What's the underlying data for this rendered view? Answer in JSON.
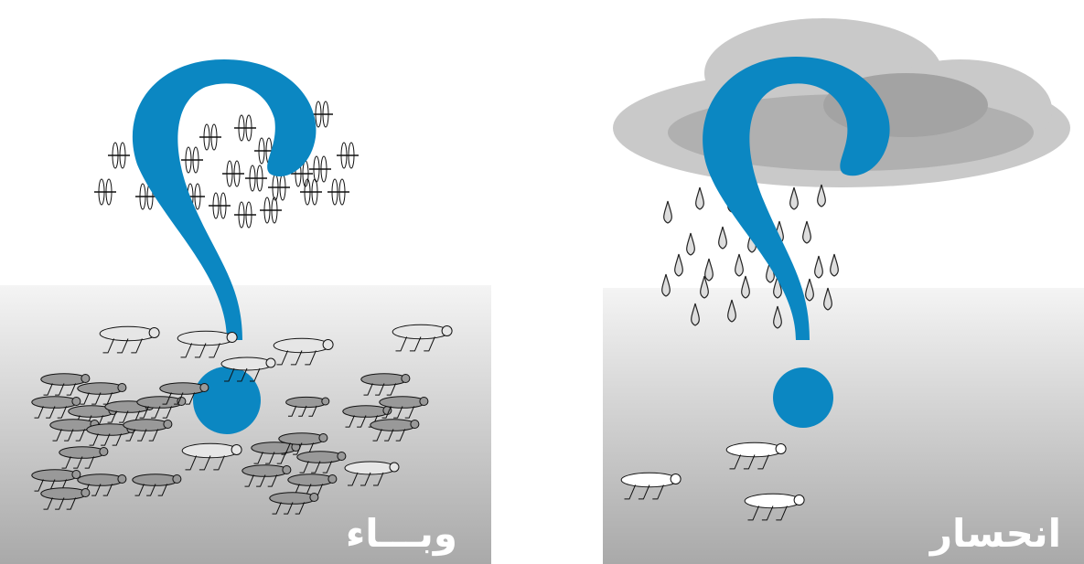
{
  "panels": [
    {
      "label": "وبـــاء"
    },
    {
      "label": "انحسار"
    }
  ]
}
